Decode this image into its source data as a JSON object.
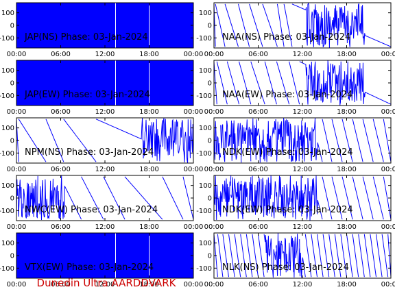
{
  "footer": "Dunedin Ultra AARDDVARK",
  "colors": {
    "trace": "#0000ff",
    "frame": "#000000",
    "footer": "#cc0000"
  },
  "chart_data": [
    {
      "type": "line",
      "title": "JAP(NS) Phase: 03-Jan-2024",
      "ylim": [
        -180,
        180
      ],
      "xlim": [
        0,
        24
      ],
      "yticks": [
        "100",
        "0",
        "-100"
      ],
      "xticks": [
        "00:00",
        "06:00",
        "12:00",
        "18:00",
        "00:00"
      ],
      "pattern": "dense",
      "note_segments": [
        [
          0,
          24
        ]
      ]
    },
    {
      "type": "line",
      "title": "NAA(NS) Phase: 03-Jan-2024",
      "ylim": [
        -180,
        180
      ],
      "xlim": [
        0,
        24
      ],
      "yticks": [
        "100",
        "0",
        "-100"
      ],
      "xticks": [
        "00:00",
        "06:00",
        "12:00",
        "18:00",
        "00:00"
      ],
      "pattern": "wrap",
      "wraps": [
        0.2,
        1.5,
        3.3,
        4.8,
        6.6,
        8.6,
        9.5,
        10.6
      ],
      "dense_range": [
        12.5,
        20.5
      ]
    },
    {
      "type": "line",
      "title": "JAP(EW) Phase: 03-Jan-2024",
      "ylim": [
        -180,
        180
      ],
      "xlim": [
        0,
        24
      ],
      "yticks": [
        "100",
        "0",
        "-100"
      ],
      "xticks": [
        "00:00",
        "06:00",
        "12:00",
        "18:00",
        "00:00"
      ],
      "pattern": "dense"
    },
    {
      "type": "line",
      "title": "NAA(EW) Phase: 03-Jan-2024",
      "ylim": [
        -180,
        180
      ],
      "xlim": [
        0,
        24
      ],
      "yticks": [
        "100",
        "0",
        "-100"
      ],
      "xticks": [
        "00:00",
        "06:00",
        "12:00",
        "18:00",
        "00:00"
      ],
      "pattern": "wrap",
      "wraps": [
        0.4,
        1.8,
        3.4,
        5.0,
        6.9,
        8.5,
        10.2,
        11.6
      ],
      "dense_range": [
        12.5,
        20.5
      ]
    },
    {
      "type": "line",
      "title": "NPM(NS) Phase: 03-Jan-2024",
      "ylim": [
        -180,
        180
      ],
      "xlim": [
        0,
        24
      ],
      "yticks": [
        "100",
        "0",
        "-100"
      ],
      "xticks": [
        "00:00",
        "06:00",
        "12:00",
        "18:00",
        "00:00"
      ],
      "pattern": "wrap",
      "wraps": [
        0.3,
        4.0,
        6.4,
        10.8
      ],
      "dense_range": [
        17.0,
        24.0
      ]
    },
    {
      "type": "line",
      "title": "NDK(EW) Phase: 03-Jan-2024",
      "ylim": [
        -180,
        180
      ],
      "xlim": [
        0,
        24
      ],
      "yticks": [
        "100",
        "0",
        "-100"
      ],
      "xticks": [
        "00:00",
        "06:00",
        "12:00",
        "18:00",
        "00:00"
      ],
      "pattern": "wrap",
      "wraps": [
        0.9,
        2.3,
        3.7,
        5.0,
        6.4,
        7.8,
        9.1,
        10.5,
        11.9,
        13.3,
        14.7,
        16.0,
        17.4,
        18.8,
        20.2,
        21.6,
        23.0
      ],
      "dense_range": [
        0.0,
        14.0
      ]
    },
    {
      "type": "line",
      "title": "NWC(EW) Phase: 03-Jan-2024",
      "ylim": [
        -180,
        180
      ],
      "xlim": [
        0,
        24
      ],
      "yticks": [
        "100",
        "0",
        "-100"
      ],
      "xticks": [
        "00:00",
        "06:00",
        "12:00",
        "18:00",
        "00:00"
      ],
      "pattern": "wrap",
      "wraps": [
        2.9,
        5.9,
        8.8,
        11.8,
        14.7,
        19.8,
        22.6
      ],
      "dense_range": [
        0.0,
        6.5
      ]
    },
    {
      "type": "line",
      "title": "NDK(EW) Phase: 03-Jan-2024",
      "ylim": [
        -180,
        180
      ],
      "xlim": [
        0,
        24
      ],
      "yticks": [
        "100",
        "0",
        "-100"
      ],
      "xticks": [
        "00:00",
        "06:00",
        "12:00",
        "18:00",
        "00:00"
      ],
      "pattern": "wrap",
      "wraps": [
        0.9,
        2.3,
        3.7,
        5.0,
        6.4,
        7.8,
        9.1,
        10.5,
        11.9,
        13.3,
        14.7,
        16.0,
        17.4,
        18.8,
        20.2,
        21.6,
        23.0
      ],
      "dense_range": [
        0.0,
        14.0
      ]
    },
    {
      "type": "line",
      "title": "VTX(EW) Phase: 03-Jan-2024",
      "ylim": [
        -180,
        180
      ],
      "xlim": [
        0,
        24
      ],
      "yticks": [
        "100",
        "0",
        "-100"
      ],
      "xticks": [
        "00:00",
        "06:00",
        "12:00",
        "18:00",
        "00:00"
      ],
      "pattern": "dense"
    },
    {
      "type": "line",
      "title": "NLK(NS) Phase: 03-Jan-2024",
      "ylim": [
        -180,
        180
      ],
      "xlim": [
        0,
        24
      ],
      "yticks": [
        "100",
        "0",
        "-100"
      ],
      "xticks": [
        "00:00",
        "06:00",
        "12:00",
        "18:00",
        "00:00"
      ],
      "pattern": "wrap",
      "wraps": [
        0.5,
        1.2,
        2.0,
        2.8,
        3.6,
        4.4,
        5.2,
        6.0,
        6.8,
        7.6,
        8.4,
        9.2,
        10.0,
        10.8,
        11.6,
        12.4,
        13.2,
        14.0,
        14.8,
        15.6,
        16.4,
        17.2,
        18.0,
        18.8,
        19.6,
        20.4,
        21.2,
        22.0,
        22.8,
        23.6
      ],
      "dense_range": [
        7.0,
        12.0
      ]
    }
  ]
}
